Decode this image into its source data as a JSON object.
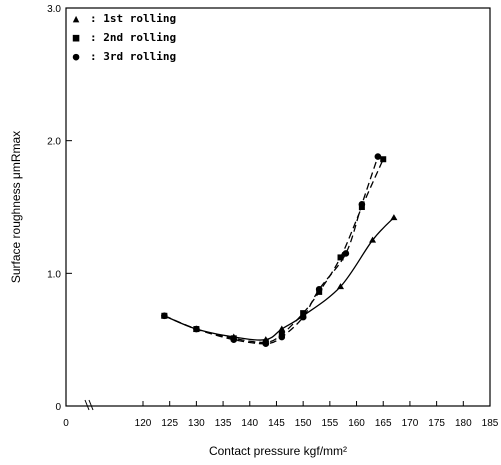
{
  "chart_data": {
    "type": "line",
    "title": "",
    "xlabel": "Contact pressure kgf/mm²",
    "ylabel": "Surface roughness μmRmax",
    "xlim": [
      0,
      185
    ],
    "ylim": [
      0,
      3.0
    ],
    "x_axis_break": true,
    "x_ticks": [
      {
        "value": 0,
        "label": "0"
      },
      {
        "value": 120,
        "label": "120"
      },
      {
        "value": 125,
        "label": "125"
      },
      {
        "value": 130,
        "label": "130"
      },
      {
        "value": 135,
        "label": "135"
      },
      {
        "value": 140,
        "label": "140"
      },
      {
        "value": 145,
        "label": "145"
      },
      {
        "value": 150,
        "label": "150"
      },
      {
        "value": 155,
        "label": "155"
      },
      {
        "value": 160,
        "label": "160"
      },
      {
        "value": 165,
        "label": "165"
      },
      {
        "value": 170,
        "label": "170"
      },
      {
        "value": 175,
        "label": "175"
      },
      {
        "value": 180,
        "label": "180"
      },
      {
        "value": 185,
        "label": "185"
      }
    ],
    "y_ticks": [
      {
        "value": 0,
        "label": "0"
      },
      {
        "value": 1.0,
        "label": "1.0"
      },
      {
        "value": 2.0,
        "label": "2.0"
      },
      {
        "value": 3.0,
        "label": "3.0"
      }
    ],
    "grid": false,
    "legend_position": "top-left",
    "series": [
      {
        "name": "1st rolling",
        "legend_symbol": "▲",
        "marker": "triangle",
        "line_style": "solid",
        "color": "#000000",
        "points": [
          [
            124,
            0.68
          ],
          [
            130,
            0.58
          ],
          [
            137,
            0.52
          ],
          [
            143,
            0.5
          ],
          [
            146,
            0.58
          ],
          [
            150,
            0.68
          ],
          [
            157,
            0.9
          ],
          [
            163,
            1.25
          ],
          [
            167,
            1.42
          ]
        ]
      },
      {
        "name": "2nd rolling",
        "legend_symbol": "■",
        "marker": "square",
        "line_style": "dashed",
        "color": "#000000",
        "points": [
          [
            124,
            0.68
          ],
          [
            130,
            0.58
          ],
          [
            137,
            0.51
          ],
          [
            143,
            0.48
          ],
          [
            146,
            0.54
          ],
          [
            150,
            0.7
          ],
          [
            153,
            0.86
          ],
          [
            157,
            1.12
          ],
          [
            161,
            1.5
          ],
          [
            165,
            1.86
          ]
        ]
      },
      {
        "name": "3rd rolling",
        "legend_symbol": "●",
        "marker": "circle",
        "line_style": "dashed",
        "color": "#000000",
        "points": [
          [
            124,
            0.68
          ],
          [
            130,
            0.58
          ],
          [
            137,
            0.5
          ],
          [
            143,
            0.47
          ],
          [
            146,
            0.52
          ],
          [
            150,
            0.67
          ],
          [
            153,
            0.88
          ],
          [
            158,
            1.15
          ],
          [
            161,
            1.52
          ],
          [
            164,
            1.88
          ]
        ]
      }
    ]
  }
}
